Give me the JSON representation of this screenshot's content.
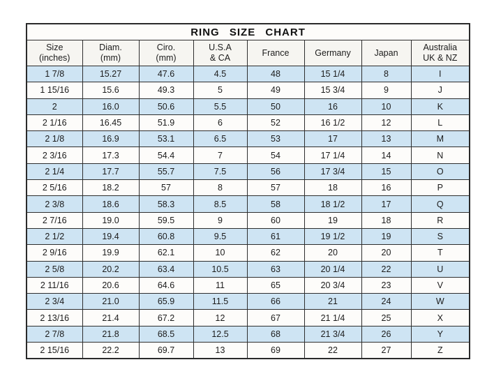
{
  "colors": {
    "stripe_row": "#cee4f3",
    "plain_row": "#fdfcfa",
    "border": "#2a2a2a",
    "text": "#1c1c1c"
  },
  "chart_data": {
    "type": "table",
    "title": "RING SIZE CHART",
    "column_ids": [
      "size-inches",
      "diam-mm",
      "ciro-mm",
      "usa-ca",
      "france",
      "germany",
      "japan",
      "australia-uk-nz"
    ],
    "columns": [
      [
        "Size",
        "(inches)"
      ],
      [
        "Diam.",
        "(mm)"
      ],
      [
        "Ciro.",
        "(mm)"
      ],
      [
        "U.S.A",
        "& CA"
      ],
      [
        "France"
      ],
      [
        "Germany"
      ],
      [
        "Japan"
      ],
      [
        "Australia",
        "UK & NZ"
      ]
    ],
    "rows": [
      [
        "1 7/8",
        "15.27",
        "47.6",
        "4.5",
        "48",
        "15 1/4",
        "8",
        "I"
      ],
      [
        "1 15/16",
        "15.6",
        "49.3",
        "5",
        "49",
        "15 3/4",
        "9",
        "J"
      ],
      [
        "2",
        "16.0",
        "50.6",
        "5.5",
        "50",
        "16",
        "10",
        "K"
      ],
      [
        "2 1/16",
        "16.45",
        "51.9",
        "6",
        "52",
        "16 1/2",
        "12",
        "L"
      ],
      [
        "2 1/8",
        "16.9",
        "53.1",
        "6.5",
        "53",
        "17",
        "13",
        "M"
      ],
      [
        "2 3/16",
        "17.3",
        "54.4",
        "7",
        "54",
        "17 1/4",
        "14",
        "N"
      ],
      [
        "2 1/4",
        "17.7",
        "55.7",
        "7.5",
        "56",
        "17 3/4",
        "15",
        "O"
      ],
      [
        "2 5/16",
        "18.2",
        "57",
        "8",
        "57",
        "18",
        "16",
        "P"
      ],
      [
        "2 3/8",
        "18.6",
        "58.3",
        "8.5",
        "58",
        "18 1/2",
        "17",
        "Q"
      ],
      [
        "2 7/16",
        "19.0",
        "59.5",
        "9",
        "60",
        "19",
        "18",
        "R"
      ],
      [
        "2 1/2",
        "19.4",
        "60.8",
        "9.5",
        "61",
        "19 1/2",
        "19",
        "S"
      ],
      [
        "2 9/16",
        "19.9",
        "62.1",
        "10",
        "62",
        "20",
        "20",
        "T"
      ],
      [
        "2 5/8",
        "20.2",
        "63.4",
        "10.5",
        "63",
        "20 1/4",
        "22",
        "U"
      ],
      [
        "2 11/16",
        "20.6",
        "64.6",
        "11",
        "65",
        "20 3/4",
        "23",
        "V"
      ],
      [
        "2 3/4",
        "21.0",
        "65.9",
        "11.5",
        "66",
        "21",
        "24",
        "W"
      ],
      [
        "2 13/16",
        "21.4",
        "67.2",
        "12",
        "67",
        "21 1/4",
        "25",
        "X"
      ],
      [
        "2 7/8",
        "21.8",
        "68.5",
        "12.5",
        "68",
        "21 3/4",
        "26",
        "Y"
      ],
      [
        "2 15/16",
        "22.2",
        "69.7",
        "13",
        "69",
        "22",
        "27",
        "Z"
      ]
    ],
    "layout": {
      "striping": "alternating rows, first data row highlighted blue",
      "title_position": "top, centered, bold"
    }
  }
}
